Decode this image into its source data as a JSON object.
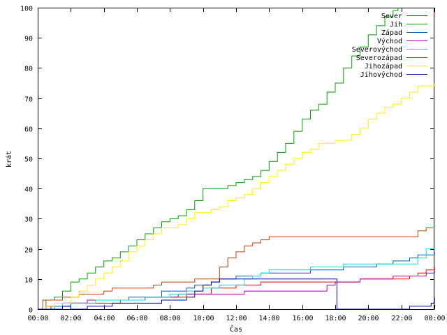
{
  "chart_data": {
    "type": "line",
    "xlabel": "Čas",
    "ylabel": "krát",
    "xlim": [
      0,
      24
    ],
    "ylim": [
      0,
      100
    ],
    "x_ticks": [
      "00:00",
      "02:00",
      "04:00",
      "06:00",
      "08:00",
      "10:00",
      "12:00",
      "14:00",
      "16:00",
      "18:00",
      "20:00",
      "22:00",
      "00:00"
    ],
    "y_ticks": [
      "0",
      "10",
      "20",
      "30",
      "40",
      "50",
      "60",
      "70",
      "80",
      "90",
      "100"
    ],
    "legend_position": "top-right",
    "grid": false,
    "series": [
      {
        "name": "Sever",
        "color": "#ff0000",
        "points": [
          [
            0,
            0
          ],
          [
            0.5,
            1
          ],
          [
            1,
            1
          ],
          [
            1.5,
            2
          ],
          [
            4.5,
            2
          ],
          [
            5,
            3
          ],
          [
            6,
            3
          ],
          [
            6.5,
            4
          ],
          [
            8.5,
            4
          ],
          [
            9,
            5
          ],
          [
            10,
            5
          ],
          [
            10.5,
            7
          ],
          [
            11.5,
            7
          ],
          [
            12,
            8
          ],
          [
            13,
            8
          ],
          [
            13.5,
            9
          ],
          [
            19,
            9
          ],
          [
            19.5,
            10
          ],
          [
            22,
            10
          ],
          [
            22.5,
            11
          ],
          [
            23,
            12
          ],
          [
            23.5,
            13
          ],
          [
            24,
            14
          ]
        ]
      },
      {
        "name": "Jih",
        "color": "#00a000",
        "points": [
          [
            0,
            0
          ],
          [
            0.5,
            3
          ],
          [
            1,
            4
          ],
          [
            1.5,
            6
          ],
          [
            2,
            9
          ],
          [
            2.5,
            10
          ],
          [
            3,
            12
          ],
          [
            3.5,
            14
          ],
          [
            4,
            16
          ],
          [
            4.5,
            17
          ],
          [
            5,
            19
          ],
          [
            5.5,
            21
          ],
          [
            6,
            23
          ],
          [
            6.5,
            25
          ],
          [
            7,
            27
          ],
          [
            7.5,
            29
          ],
          [
            8,
            30
          ],
          [
            8.5,
            31
          ],
          [
            9,
            33
          ],
          [
            9.5,
            36
          ],
          [
            10,
            40
          ],
          [
            11,
            40
          ],
          [
            11.5,
            41
          ],
          [
            12,
            42
          ],
          [
            12.5,
            43
          ],
          [
            13,
            44
          ],
          [
            13.5,
            46
          ],
          [
            14,
            49
          ],
          [
            14.5,
            52
          ],
          [
            15,
            55
          ],
          [
            15.5,
            59
          ],
          [
            16,
            63
          ],
          [
            16.5,
            66
          ],
          [
            17,
            68
          ],
          [
            17.5,
            72
          ],
          [
            18,
            75
          ],
          [
            18.5,
            80
          ],
          [
            19,
            84
          ],
          [
            19.5,
            87
          ],
          [
            20,
            91
          ],
          [
            20.5,
            94
          ],
          [
            21,
            97
          ],
          [
            21.5,
            99
          ],
          [
            21.8,
            100
          ]
        ]
      },
      {
        "name": "Západ",
        "color": "#0060ad",
        "points": [
          [
            0,
            0
          ],
          [
            0.8,
            1
          ],
          [
            2,
            2
          ],
          [
            3,
            3
          ],
          [
            5,
            3
          ],
          [
            5.5,
            4
          ],
          [
            7,
            4
          ],
          [
            7.5,
            6
          ],
          [
            8.5,
            6
          ],
          [
            9,
            7
          ],
          [
            9.5,
            8
          ],
          [
            10,
            8
          ],
          [
            10.5,
            9
          ],
          [
            11,
            10
          ],
          [
            12,
            11
          ],
          [
            13,
            11
          ],
          [
            13.5,
            12
          ],
          [
            16,
            12
          ],
          [
            16.5,
            13
          ],
          [
            18,
            13
          ],
          [
            18.5,
            14
          ],
          [
            20,
            14
          ],
          [
            20.5,
            15
          ],
          [
            21.5,
            16
          ],
          [
            22.5,
            17
          ],
          [
            23,
            18
          ],
          [
            23.5,
            18
          ],
          [
            24,
            19
          ]
        ]
      },
      {
        "name": "Východ",
        "color": "#aa00aa",
        "points": [
          [
            0,
            0
          ],
          [
            0.5,
            1
          ],
          [
            1.5,
            2
          ],
          [
            2.5,
            2
          ],
          [
            3,
            3
          ],
          [
            6,
            3
          ],
          [
            6.5,
            4
          ],
          [
            8,
            4
          ],
          [
            8.5,
            5
          ],
          [
            12,
            5
          ],
          [
            12.5,
            6
          ],
          [
            17,
            6
          ],
          [
            17.5,
            8
          ],
          [
            18,
            9
          ],
          [
            19,
            9
          ],
          [
            19.5,
            10
          ],
          [
            21,
            10
          ],
          [
            21.5,
            11
          ],
          [
            23,
            11
          ],
          [
            23.5,
            12
          ],
          [
            24,
            13
          ]
        ]
      },
      {
        "name": "Severovýchod",
        "color": "#00e0e0",
        "points": [
          [
            0,
            0
          ],
          [
            1,
            1
          ],
          [
            1.5,
            2
          ],
          [
            3,
            2
          ],
          [
            3.5,
            3
          ],
          [
            6,
            3
          ],
          [
            6.5,
            4
          ],
          [
            7.5,
            4
          ],
          [
            8,
            5
          ],
          [
            9,
            6
          ],
          [
            10,
            7
          ],
          [
            11,
            8
          ],
          [
            12,
            8
          ],
          [
            12.5,
            10
          ],
          [
            13,
            11
          ],
          [
            13.5,
            12
          ],
          [
            14,
            13
          ],
          [
            16,
            13
          ],
          [
            16.5,
            14
          ],
          [
            18,
            14
          ],
          [
            18.5,
            15
          ],
          [
            22.5,
            15
          ],
          [
            23,
            17
          ],
          [
            23.5,
            20
          ],
          [
            24,
            20
          ]
        ]
      },
      {
        "name": "Severozápad",
        "color": "#c04000",
        "points": [
          [
            0,
            0
          ],
          [
            0.3,
            3
          ],
          [
            1,
            3
          ],
          [
            1.5,
            4
          ],
          [
            2,
            4
          ],
          [
            2.5,
            5
          ],
          [
            3.5,
            5
          ],
          [
            4,
            6
          ],
          [
            4.5,
            7
          ],
          [
            6.5,
            7
          ],
          [
            7,
            8
          ],
          [
            7.5,
            9
          ],
          [
            9,
            9
          ],
          [
            9.5,
            10
          ],
          [
            10.5,
            10
          ],
          [
            11,
            14
          ],
          [
            11.5,
            17
          ],
          [
            12,
            19
          ],
          [
            12.5,
            21
          ],
          [
            13,
            22
          ],
          [
            13.5,
            23
          ],
          [
            14,
            24
          ],
          [
            22.5,
            24
          ],
          [
            23,
            26
          ],
          [
            23.5,
            27
          ],
          [
            24,
            27
          ]
        ]
      },
      {
        "name": "Jihozápad",
        "color": "#ffee00",
        "points": [
          [
            0,
            0
          ],
          [
            0.5,
            1
          ],
          [
            1,
            2
          ],
          [
            1.5,
            2
          ],
          [
            2,
            4
          ],
          [
            2.5,
            6
          ],
          [
            3,
            8
          ],
          [
            3.5,
            10
          ],
          [
            4,
            12
          ],
          [
            4.5,
            14
          ],
          [
            5,
            16
          ],
          [
            5.5,
            19
          ],
          [
            6,
            21
          ],
          [
            6.5,
            23
          ],
          [
            7,
            25
          ],
          [
            7.5,
            27
          ],
          [
            8.5,
            28
          ],
          [
            9,
            30
          ],
          [
            9.5,
            32
          ],
          [
            10,
            32
          ],
          [
            10.5,
            33
          ],
          [
            11,
            34
          ],
          [
            11.5,
            36
          ],
          [
            12,
            37
          ],
          [
            12.5,
            38
          ],
          [
            13,
            40
          ],
          [
            13.5,
            42
          ],
          [
            14,
            44
          ],
          [
            14.5,
            46
          ],
          [
            15,
            48
          ],
          [
            15.5,
            50
          ],
          [
            16,
            52
          ],
          [
            16.5,
            53
          ],
          [
            17,
            55
          ],
          [
            18,
            56
          ],
          [
            18.5,
            56
          ],
          [
            19,
            58
          ],
          [
            19.5,
            60
          ],
          [
            20,
            63
          ],
          [
            20.5,
            65
          ],
          [
            21,
            67
          ],
          [
            21.5,
            68
          ],
          [
            22,
            70
          ],
          [
            22.5,
            72
          ],
          [
            23,
            74
          ],
          [
            23.5,
            74
          ],
          [
            24,
            75
          ]
        ]
      },
      {
        "name": "Jihovýchod",
        "color": "#0000a0",
        "points": [
          [
            0,
            0
          ],
          [
            1.5,
            1
          ],
          [
            2,
            0
          ],
          [
            3,
            1
          ],
          [
            4,
            1
          ],
          [
            4.5,
            2
          ],
          [
            7,
            2
          ],
          [
            7.5,
            3
          ],
          [
            8.5,
            3
          ],
          [
            9,
            4
          ],
          [
            9.5,
            6
          ],
          [
            10,
            8
          ],
          [
            10.5,
            9
          ],
          [
            11,
            10
          ],
          [
            17.9,
            10
          ],
          [
            18.1,
            0
          ],
          [
            22,
            0
          ],
          [
            22.5,
            1
          ],
          [
            23.5,
            1
          ],
          [
            23.8,
            2
          ],
          [
            24,
            4
          ]
        ]
      }
    ]
  }
}
